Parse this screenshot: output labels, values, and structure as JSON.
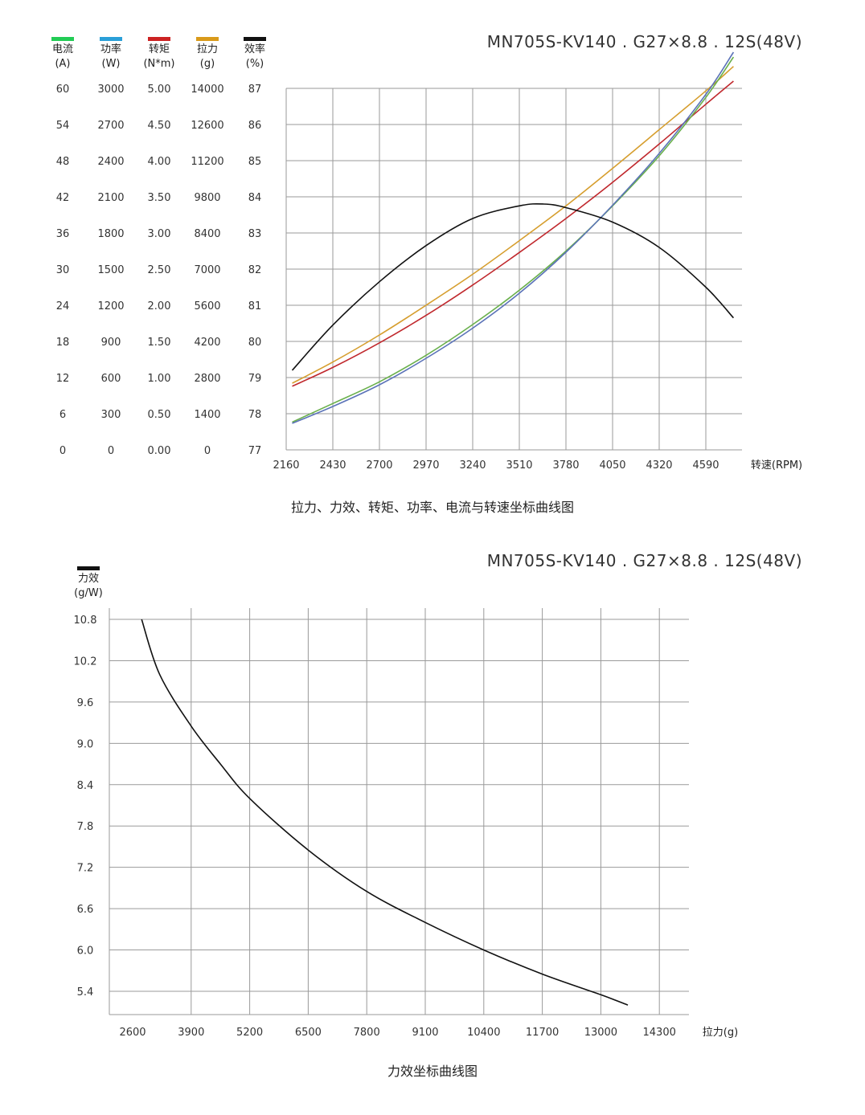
{
  "chart_data": [
    {
      "type": "line",
      "title": "MN705S-KV140 . G27×8.8 . 12S(48V)",
      "caption": "拉力、力效、转矩、功率、电流与转速坐标曲线图",
      "xlabel": "转速(RPM)",
      "x_ticks": [
        "2160",
        "2430",
        "2700",
        "2970",
        "3240",
        "3510",
        "3780",
        "4050",
        "4320",
        "4590"
      ],
      "xlim": [
        2160,
        4590
      ],
      "axes": [
        {
          "name": "电流",
          "unit": "(A)",
          "color": "#22cc55",
          "ticks": [
            "60",
            "54",
            "48",
            "42",
            "36",
            "30",
            "24",
            "18",
            "12",
            "6",
            "0"
          ],
          "ylim": [
            0,
            60
          ]
        },
        {
          "name": "功率",
          "unit": "(W)",
          "color": "#2a9fd8",
          "ticks": [
            "3000",
            "2700",
            "2400",
            "2100",
            "1800",
            "1500",
            "1200",
            "900",
            "600",
            "300",
            "0"
          ],
          "ylim": [
            0,
            3000
          ]
        },
        {
          "name": "转矩",
          "unit": "(N*m)",
          "color": "#cc2222",
          "ticks": [
            "5.00",
            "4.50",
            "4.00",
            "3.50",
            "3.00",
            "2.50",
            "2.00",
            "1.50",
            "1.00",
            "0.50",
            "0.00"
          ],
          "ylim": [
            0,
            5
          ]
        },
        {
          "name": "拉力",
          "unit": "(g)",
          "color": "#d99a1a",
          "ticks": [
            "14000",
            "12600",
            "11200",
            "9800",
            "8400",
            "7000",
            "5600",
            "4200",
            "2800",
            "1400",
            "0"
          ],
          "ylim": [
            0,
            14000
          ]
        },
        {
          "name": "效率",
          "unit": "(%)",
          "color": "#111111",
          "ticks": [
            "87",
            "86",
            "85",
            "84",
            "83",
            "82",
            "81",
            "80",
            "79",
            "78",
            "77"
          ],
          "ylim": [
            77,
            87
          ]
        }
      ],
      "series": [
        {
          "axis": "拉力",
          "color": "#d69e2e",
          "x": [
            2195,
            2430,
            2700,
            2970,
            3240,
            3510,
            3780,
            4050,
            4320,
            4590,
            4750
          ],
          "values": [
            2580,
            3400,
            4450,
            5600,
            6800,
            8100,
            9450,
            10900,
            12400,
            13900,
            14850
          ]
        },
        {
          "axis": "转矩",
          "color": "#c0282d",
          "x": [
            2195,
            2430,
            2700,
            2970,
            3240,
            3510,
            3780,
            4050,
            4320,
            4590,
            4750
          ],
          "values": [
            0.88,
            1.14,
            1.48,
            1.86,
            2.28,
            2.73,
            3.2,
            3.7,
            4.23,
            4.78,
            5.1
          ]
        },
        {
          "axis": "电流",
          "color": "#6ab04c",
          "x": [
            2195,
            2430,
            2700,
            2970,
            3240,
            3510,
            3780,
            4050,
            4320,
            4590,
            4750
          ],
          "values": [
            4.6,
            7.7,
            11.3,
            15.7,
            20.8,
            26.5,
            33.0,
            40.5,
            48.8,
            58.5,
            65.2
          ]
        },
        {
          "axis": "功率",
          "color": "#5b73b8",
          "x": [
            2195,
            2430,
            2700,
            2970,
            3240,
            3510,
            3780,
            4050,
            4320,
            4590,
            4750
          ],
          "values": [
            220,
            360,
            540,
            760,
            1010,
            1300,
            1640,
            2030,
            2460,
            2950,
            3300
          ]
        },
        {
          "axis": "效率",
          "color": "#111111",
          "x": [
            2195,
            2430,
            2700,
            2970,
            3240,
            3510,
            3650,
            3780,
            4050,
            4320,
            4590,
            4750
          ],
          "values": [
            79.2,
            80.45,
            81.65,
            82.65,
            83.4,
            83.75,
            83.8,
            83.7,
            83.3,
            82.6,
            81.5,
            80.65
          ]
        }
      ]
    },
    {
      "type": "line",
      "title": "MN705S-KV140 . G27×8.8 . 12S(48V)",
      "caption": "力效坐标曲线图",
      "legend": {
        "name": "力效",
        "unit": "(g/W)",
        "color": "#111111"
      },
      "xlabel": "拉力(g)",
      "x_ticks": [
        "2600",
        "3900",
        "5200",
        "6500",
        "7800",
        "9100",
        "10400",
        "11700",
        "13000",
        "14300"
      ],
      "y_ticks": [
        "10.8",
        "10.2",
        "9.6",
        "9.0",
        "8.4",
        "7.8",
        "7.2",
        "6.6",
        "6.0",
        "5.4"
      ],
      "xlim": [
        2600,
        14300
      ],
      "ylim": [
        5.4,
        10.8
      ],
      "series": [
        {
          "name": "力效",
          "color": "#111111",
          "x": [
            2800,
            3200,
            3900,
            4550,
            5200,
            6500,
            7800,
            9100,
            10400,
            11700,
            13000,
            13600
          ],
          "values": [
            10.8,
            10.0,
            9.25,
            8.7,
            8.2,
            7.45,
            6.85,
            6.4,
            6.0,
            5.65,
            5.35,
            5.2
          ]
        }
      ]
    }
  ]
}
